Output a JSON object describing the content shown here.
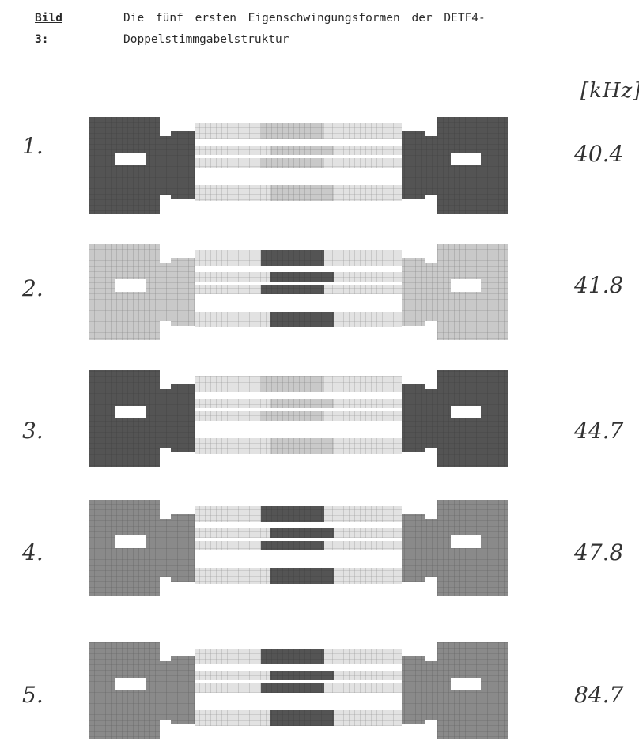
{
  "caption": {
    "label": "Bild 3:",
    "line1": "Die fünf ersten Eigenschwingungsformen der DETF4-",
    "line2": "Doppelstimmgabelstruktur"
  },
  "unit_label": "[kHz]",
  "modes": [
    {
      "number": "1.",
      "frequency": "40.4",
      "shade": "dark"
    },
    {
      "number": "2.",
      "frequency": "41.8",
      "shade": "light"
    },
    {
      "number": "3.",
      "frequency": "44.7",
      "shade": "dark"
    },
    {
      "number": "4.",
      "frequency": "47.8",
      "shade": "mid"
    },
    {
      "number": "5.",
      "frequency": "84.7",
      "shade": "mid"
    }
  ]
}
